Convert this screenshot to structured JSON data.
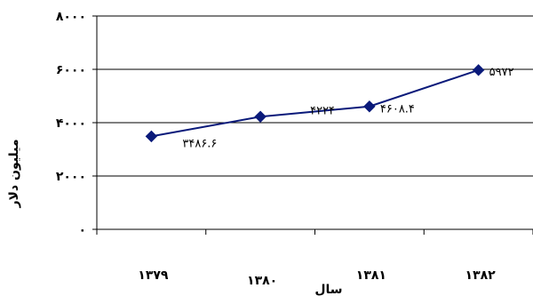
{
  "chart_data": {
    "type": "line",
    "title": "",
    "xlabel": "سال",
    "ylabel": "میلیون دلار",
    "categories": [
      "۱۳۷۹",
      "۱۳۸۰",
      "۱۳۸۱",
      "۱۳۸۲"
    ],
    "series": [
      {
        "values": [
          3486.6,
          4224,
          4608.4,
          5972
        ],
        "data_labels": [
          "۳۴۸۶.۶",
          "۴۲۲۴",
          "۴۶۰۸.۴",
          "۵۹۷۲"
        ],
        "color": "#0a1a7a"
      }
    ],
    "yticks": [
      0,
      2000,
      4000,
      6000,
      8000
    ],
    "ytick_labels": [
      "۰",
      "۲۰۰۰",
      "۴۰۰۰",
      "۶۰۰۰",
      "۸۰۰۰"
    ],
    "ylim": [
      0,
      8000
    ],
    "grid": true,
    "legend": false
  }
}
